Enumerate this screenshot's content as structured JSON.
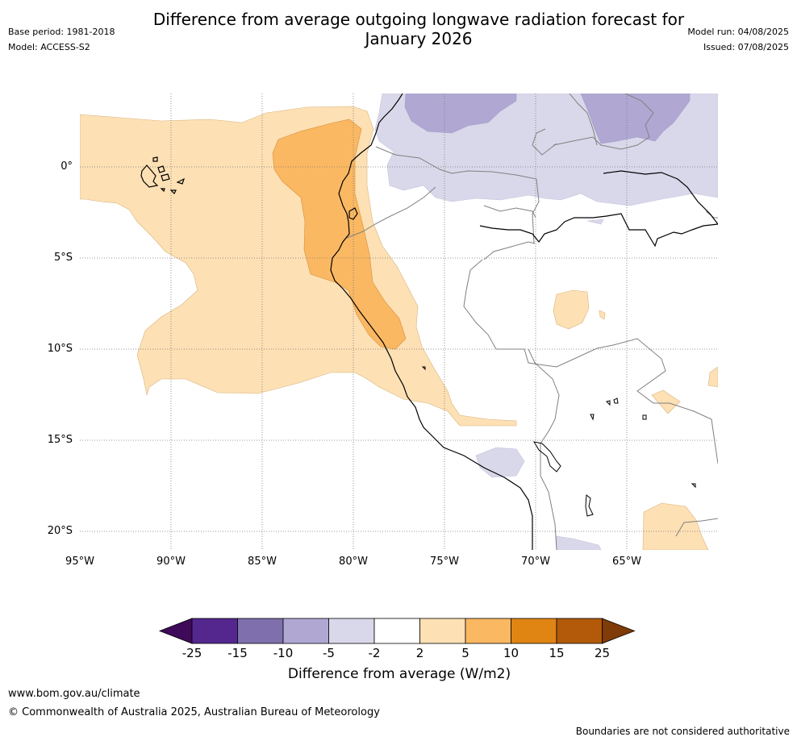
{
  "title": "Difference from average outgoing longwave radiation forecast for January 2026",
  "header": {
    "base_period": "Base period: 1981-2018",
    "model": "Model: ACCESS-S2",
    "model_run": "Model run: 04/08/2025",
    "issued": "Issued: 07/08/2025"
  },
  "map": {
    "lat_labels": [
      "0°",
      "5°S",
      "10°S",
      "15°S",
      "20°S"
    ],
    "lon_labels": [
      "95°W",
      "90°W",
      "85°W",
      "80°W",
      "75°W",
      "70°W",
      "65°W"
    ]
  },
  "legend": {
    "title": "Difference from average (W/m2)",
    "ticks": [
      "-25",
      "-15",
      "-10",
      "-5",
      "-2",
      "2",
      "5",
      "10",
      "15",
      "25"
    ],
    "colors": [
      "#3f0a5a",
      "#54278f",
      "#7f70ad",
      "#b0a8d3",
      "#d9d8ea",
      "#ffffff",
      "#fde0b4",
      "#fbb862",
      "#e08414",
      "#b25a09",
      "#7f3b08"
    ]
  },
  "footer": {
    "url": "www.bom.gov.au/climate",
    "copyright": "© Commonwealth of Australia 2025, Australian Bureau of Meteorology",
    "disclaimer": "Boundaries are not considered authoritative"
  }
}
